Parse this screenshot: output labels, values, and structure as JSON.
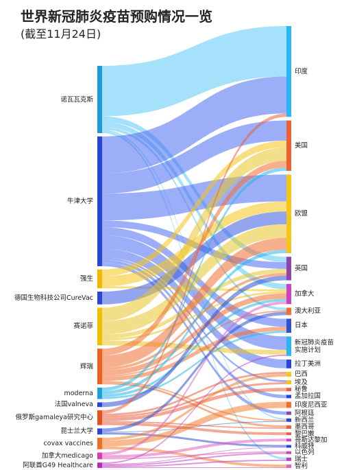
{
  "chart_data": {
    "type": "sankey",
    "title": "世界新冠肺炎疫苗预购情况一览",
    "subtitle": "(截至11月24日)",
    "sources": [
      {
        "name": "诺瓦瓦克斯",
        "color": "#5bc8f5",
        "bar": "#1e9ad6"
      },
      {
        "name": "牛津大学",
        "color": "#4a6cf0",
        "bar": "#2845d8"
      },
      {
        "name": "强生",
        "color": "#f5c518",
        "bar": "#f0b800"
      },
      {
        "name": "德国生物科技公司CureVac",
        "color": "#3a5be0",
        "bar": "#2845d8"
      },
      {
        "name": "赛诺菲",
        "color": "#e8c42a",
        "bar": "#f0c000"
      },
      {
        "name": "辉瑞",
        "color": "#f07030",
        "bar": "#f06020"
      },
      {
        "name": "moderna",
        "color": "#29b6e8",
        "bar": "#1ea0d8"
      },
      {
        "name": "法国valneva",
        "color": "#3050d0",
        "bar": "#2845d8"
      },
      {
        "name": "俄罗斯gamaleya研究中心",
        "color": "#e8603c",
        "bar": "#e85020"
      },
      {
        "name": "昆士兰大学",
        "color": "#3050d0",
        "bar": "#2845d8"
      },
      {
        "name": "covax vaccines",
        "color": "#f08030",
        "bar": "#f07020"
      },
      {
        "name": "加拿大medicago",
        "color": "#e060c0",
        "bar": "#d040b0"
      },
      {
        "name": "阿联酋G49 Healthcare",
        "color": "#c040c0",
        "bar": "#b030b0"
      }
    ],
    "targets": [
      {
        "name": "印度",
        "bar": "#29b6f6"
      },
      {
        "name": "美国",
        "bar": "#f06030"
      },
      {
        "name": "欧盟",
        "bar": "#f5c518"
      },
      {
        "name": "英国",
        "bar": "#8e44ad"
      },
      {
        "name": "加拿大",
        "bar": "#d040c0"
      },
      {
        "name": "澳大利亚",
        "bar": "#f07030"
      },
      {
        "name": "日本",
        "bar": "#3050d0"
      },
      {
        "name": "新冠肺炎疫苗实施计划",
        "bar": "#29b6f6"
      },
      {
        "name": "拉丁美洲",
        "bar": "#2845d8"
      },
      {
        "name": "巴西",
        "bar": "#f5c518"
      },
      {
        "name": "埃及",
        "bar": "#f5c518"
      },
      {
        "name": "秘鲁",
        "bar": "#e8603c"
      },
      {
        "name": "孟加拉国",
        "bar": "#2845d8"
      },
      {
        "name": "印度尼西亚",
        "bar": "#f07030"
      },
      {
        "name": "阿根廷",
        "bar": "#8e44ad"
      },
      {
        "name": "新西兰",
        "bar": "#2845d8"
      },
      {
        "name": "墨西哥",
        "bar": "#e8603c"
      },
      {
        "name": "黎巴嫩",
        "bar": "#e8603c"
      },
      {
        "name": "哥斯达黎加",
        "bar": "#d040c0"
      },
      {
        "name": "科威特",
        "bar": "#2845d8"
      },
      {
        "name": "以色列",
        "bar": "#d040c0"
      },
      {
        "name": "瑞士",
        "bar": "#c040c0"
      },
      {
        "name": "智利",
        "bar": "#e060c0"
      }
    ],
    "links": [
      {
        "source": 0,
        "target": 0,
        "value": 75
      },
      {
        "source": 0,
        "target": 3,
        "value": 8
      },
      {
        "source": 0,
        "target": 4,
        "value": 8
      },
      {
        "source": 0,
        "target": 5,
        "value": 4
      },
      {
        "source": 0,
        "target": 15,
        "value": 2
      },
      {
        "source": 0,
        "target": 21,
        "value": 3
      },
      {
        "source": 1,
        "target": 0,
        "value": 55
      },
      {
        "source": 1,
        "target": 1,
        "value": 30
      },
      {
        "source": 1,
        "target": 2,
        "value": 40
      },
      {
        "source": 1,
        "target": 3,
        "value": 10
      },
      {
        "source": 1,
        "target": 6,
        "value": 12
      },
      {
        "source": 1,
        "target": 7,
        "value": 20
      },
      {
        "source": 1,
        "target": 8,
        "value": 13
      },
      {
        "source": 1,
        "target": 10,
        "value": 3
      },
      {
        "source": 1,
        "target": 12,
        "value": 5
      },
      {
        "source": 1,
        "target": 14,
        "value": 5
      },
      {
        "source": 2,
        "target": 1,
        "value": 10
      },
      {
        "source": 2,
        "target": 2,
        "value": 15
      },
      {
        "source": 2,
        "target": 4,
        "value": 3
      },
      {
        "source": 3,
        "target": 2,
        "value": 19
      },
      {
        "source": 4,
        "target": 1,
        "value": 20
      },
      {
        "source": 4,
        "target": 2,
        "value": 20
      },
      {
        "source": 4,
        "target": 3,
        "value": 6
      },
      {
        "source": 4,
        "target": 4,
        "value": 3
      },
      {
        "source": 4,
        "target": 7,
        "value": 7
      },
      {
        "source": 5,
        "target": 1,
        "value": 10
      },
      {
        "source": 5,
        "target": 2,
        "value": 18
      },
      {
        "source": 5,
        "target": 3,
        "value": 4
      },
      {
        "source": 5,
        "target": 4,
        "value": 8
      },
      {
        "source": 5,
        "target": 5,
        "value": 2
      },
      {
        "source": 5,
        "target": 6,
        "value": 6
      },
      {
        "source": 5,
        "target": 15,
        "value": 2
      },
      {
        "source": 5,
        "target": 16,
        "value": 3
      },
      {
        "source": 6,
        "target": 1,
        "value": 5
      },
      {
        "source": 6,
        "target": 2,
        "value": 5
      },
      {
        "source": 6,
        "target": 4,
        "value": 4
      },
      {
        "source": 6,
        "target": 6,
        "value": 3
      },
      {
        "source": 7,
        "target": 3,
        "value": 7
      },
      {
        "source": 8,
        "target": 0,
        "value": 5
      },
      {
        "source": 8,
        "target": 9,
        "value": 3
      },
      {
        "source": 8,
        "target": 10,
        "value": 3
      },
      {
        "source": 8,
        "target": 11,
        "value": 5
      },
      {
        "source": 8,
        "target": 16,
        "value": 2
      },
      {
        "source": 8,
        "target": 17,
        "value": 4
      },
      {
        "source": 9,
        "target": 5,
        "value": 5
      },
      {
        "source": 9,
        "target": 15,
        "value": 1
      },
      {
        "source": 9,
        "target": 19,
        "value": 3
      },
      {
        "source": 10,
        "target": 9,
        "value": 4
      },
      {
        "source": 10,
        "target": 13,
        "value": 9
      },
      {
        "source": 10,
        "target": 22,
        "value": 4
      },
      {
        "source": 11,
        "target": 4,
        "value": 4
      },
      {
        "source": 11,
        "target": 18,
        "value": 4
      },
      {
        "source": 11,
        "target": 20,
        "value": 2
      },
      {
        "source": 12,
        "target": 7,
        "value": 2
      },
      {
        "source": 12,
        "target": 19,
        "value": 1
      },
      {
        "source": 12,
        "target": 20,
        "value": 2
      },
      {
        "source": 12,
        "target": 21,
        "value": 2
      },
      {
        "source": 12,
        "target": 22,
        "value": 1
      }
    ]
  }
}
